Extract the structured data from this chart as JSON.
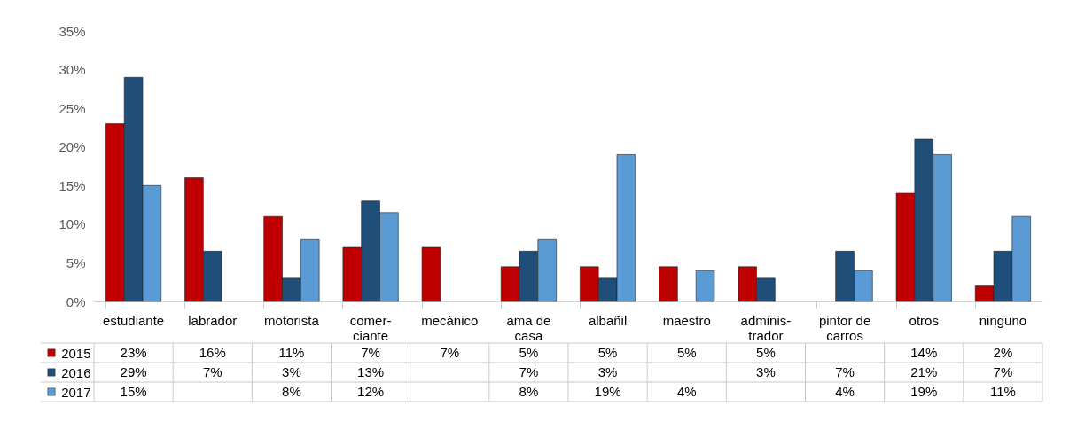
{
  "chart_data": {
    "type": "bar",
    "categories": [
      "estudiante",
      "labrador",
      "motorista",
      "comer- ciante",
      "mecánico",
      "ama de casa",
      "albañil",
      "maestro",
      "adminis- trador",
      "pintor de carros",
      "otros",
      "ninguno"
    ],
    "series": [
      {
        "name": "2015",
        "color": "#c00000",
        "values": [
          23,
          16,
          11,
          7,
          7,
          4.5,
          4.5,
          4.5,
          4.5,
          null,
          14,
          2
        ],
        "value_labels": [
          "23%",
          "16%",
          "11%",
          "7%",
          "7%",
          "5%",
          "5%",
          "5%",
          "5%",
          null,
          "14%",
          "2%"
        ]
      },
      {
        "name": "2016",
        "color": "#1f4e79",
        "values": [
          29,
          6.5,
          3,
          13,
          null,
          6.5,
          3,
          null,
          3,
          6.5,
          21,
          6.5
        ],
        "value_labels": [
          "29%",
          "7%",
          "3%",
          "13%",
          null,
          "7%",
          "3%",
          null,
          "3%",
          "7%",
          "21%",
          "7%"
        ]
      },
      {
        "name": "2017",
        "color": "#5b9bd5",
        "values": [
          15,
          null,
          8,
          11.5,
          null,
          8,
          19,
          4,
          null,
          4,
          19,
          11
        ],
        "value_labels": [
          "15%",
          null,
          "8%",
          "12%",
          null,
          "8%",
          "19%",
          "4%",
          null,
          "4%",
          "19%",
          "11%"
        ]
      }
    ],
    "ylim": [
      0,
      35
    ],
    "yticks": [
      {
        "value": 0,
        "label": "0%"
      },
      {
        "value": 5,
        "label": "5%"
      },
      {
        "value": 10,
        "label": "10%"
      },
      {
        "value": 15,
        "label": "15%"
      },
      {
        "value": 20,
        "label": "20%"
      },
      {
        "value": 25,
        "label": "25%"
      },
      {
        "value": 30,
        "label": "30%"
      },
      {
        "value": 35,
        "label": "35%"
      }
    ],
    "grid": false,
    "legend": "bottom"
  }
}
